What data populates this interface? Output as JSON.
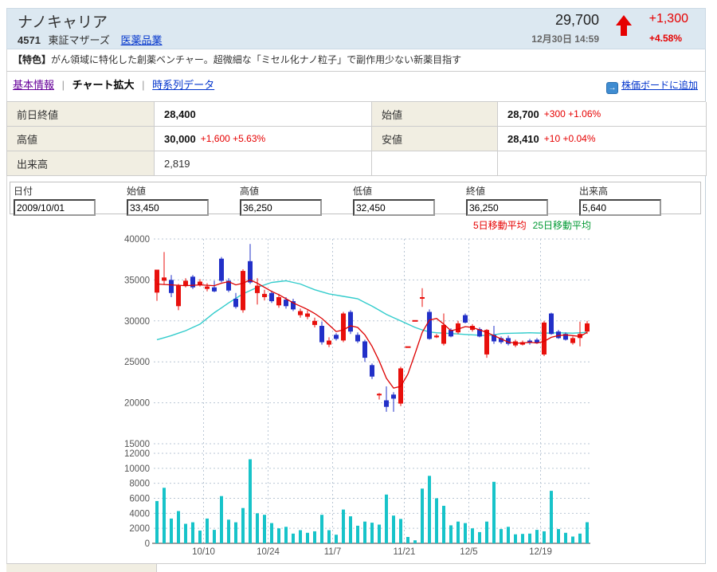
{
  "header": {
    "title": "ナノキャリア",
    "code": "4571",
    "market": "東証マザーズ",
    "industry": "医薬品業",
    "price": "29,700",
    "datetime": "12月30日 14:59",
    "change": "+1,300",
    "change_pct": "+4.58%"
  },
  "feature": {
    "tag": "【特色】",
    "text": "がん領域に特化した創薬ベンチャー。超微細な「ミセル化ナノ粒子」で副作用少ない新薬目指す"
  },
  "tabs": [
    {
      "label": "基本情報",
      "current": false
    },
    {
      "label": "チャート拡大",
      "current": true
    },
    {
      "label": "時系列データ",
      "current": false
    }
  ],
  "addboard_label": "株価ボードに追加",
  "summary": {
    "rows": [
      {
        "label": "前日終値",
        "value": "28,400",
        "extra": "",
        "bold": true
      },
      {
        "label": "始値",
        "value": "28,700",
        "extra": "+300 +1.06%",
        "bold": true
      },
      {
        "label": "高値",
        "value": "30,000",
        "extra": "+1,600 +5.63%",
        "bold": true
      },
      {
        "label": "安値",
        "value": "28,410",
        "extra": "+10 +0.04%",
        "bold": true
      },
      {
        "label": "出来高",
        "value": "2,819",
        "extra": "",
        "bold": false
      },
      null
    ]
  },
  "form": {
    "fields": [
      {
        "label": "日付",
        "value": "2009/10/01"
      },
      {
        "label": "始値",
        "value": "33,450"
      },
      {
        "label": "高値",
        "value": "36,250"
      },
      {
        "label": "低値",
        "value": "32,450"
      },
      {
        "label": "終値",
        "value": "36,250"
      },
      {
        "label": "出来高",
        "value": "5,640"
      }
    ]
  },
  "legend": {
    "ma5": "5日移動平均",
    "ma25": "25日移動平均"
  },
  "chart_data": {
    "type": "candlestick+volume",
    "price_axis": {
      "min": 15000,
      "max": 40000,
      "ticks": [
        40000,
        35000,
        30000,
        25000,
        20000,
        15000
      ]
    },
    "volume_axis": {
      "min": 0,
      "max": 12000,
      "ticks": [
        12000,
        10000,
        8000,
        6000,
        4000,
        2000,
        0
      ]
    },
    "x_tick_labels": [
      "10/10",
      "10/24",
      "11/7",
      "11/21",
      "12/5",
      "12/19"
    ],
    "x_tick_day_boundaries": [
      6.5,
      15.5,
      24.5,
      34.5,
      43.5,
      53.5
    ],
    "day_fields": [
      "date",
      "open",
      "high",
      "low",
      "close",
      "volume"
    ],
    "days": [
      [
        "2009/10/01",
        33450,
        36250,
        32450,
        36250,
        5640
      ],
      [
        "2009/10/02",
        34900,
        38400,
        34500,
        35300,
        7400
      ],
      [
        "2009/10/05",
        35000,
        35600,
        32900,
        33400,
        3300
      ],
      [
        "2009/10/06",
        31800,
        34500,
        31300,
        34300,
        4300
      ],
      [
        "2009/10/07",
        34300,
        35200,
        34100,
        34900,
        2600
      ],
      [
        "2009/10/08",
        35400,
        35600,
        33900,
        34100,
        2800
      ],
      [
        "2009/10/09",
        34400,
        35100,
        34200,
        34800,
        1700
      ],
      [
        "2009/10/13",
        33900,
        34600,
        33600,
        34200,
        3300
      ],
      [
        "2009/10/14",
        34100,
        34900,
        33500,
        33600,
        1800
      ],
      [
        "2009/10/15",
        37600,
        37800,
        34700,
        34900,
        6300
      ],
      [
        "2009/10/16",
        34900,
        35200,
        33500,
        33700,
        3150
      ],
      [
        "2009/10/19",
        32700,
        33400,
        31500,
        31700,
        2800
      ],
      [
        "2009/10/20",
        31300,
        36300,
        31000,
        36100,
        4700
      ],
      [
        "2009/10/21",
        37300,
        39400,
        34500,
        34700,
        11200
      ],
      [
        "2009/10/22",
        33400,
        35200,
        32000,
        34300,
        4000
      ],
      [
        "2009/10/23",
        32900,
        33800,
        32500,
        33300,
        3800
      ],
      [
        "2009/10/26",
        33400,
        33700,
        32200,
        32400,
        2700
      ],
      [
        "2009/10/27",
        31900,
        33300,
        31600,
        32900,
        2000
      ],
      [
        "2009/10/28",
        32600,
        32900,
        31500,
        31800,
        2200
      ],
      [
        "2009/10/29",
        32400,
        32700,
        31200,
        31400,
        1300
      ],
      [
        "2009/10/30",
        30700,
        31500,
        30400,
        31200,
        1750
      ],
      [
        "2009/11/02",
        30500,
        31300,
        30200,
        30900,
        1400
      ],
      [
        "2009/11/04",
        29500,
        30400,
        29200,
        30000,
        1600
      ],
      [
        "2009/11/05",
        29400,
        29900,
        27100,
        27400,
        3800
      ],
      [
        "2009/11/06",
        27100,
        28000,
        26800,
        27600,
        1750
      ],
      [
        "2009/11/09",
        28300,
        28500,
        27600,
        27800,
        1150
      ],
      [
        "2009/11/10",
        27600,
        31100,
        27400,
        30900,
        4500
      ],
      [
        "2009/11/11",
        31100,
        31300,
        28400,
        28700,
        3600
      ],
      [
        "2009/11/12",
        28300,
        28600,
        27300,
        27500,
        2350
      ],
      [
        "2009/11/13",
        27500,
        27700,
        25000,
        25500,
        2900
      ],
      [
        "2009/11/16",
        24600,
        24800,
        22900,
        23200,
        2750
      ],
      [
        "2009/11/17",
        21100,
        21200,
        20400,
        21100,
        2500
      ],
      [
        "2009/11/18",
        20300,
        22000,
        18900,
        19500,
        6500
      ],
      [
        "2009/11/19",
        21000,
        21300,
        18900,
        20500,
        3700
      ],
      [
        "2009/11/20",
        19900,
        24400,
        19600,
        24200,
        3250
      ],
      [
        "2009/11/24",
        26900,
        26900,
        26900,
        26900,
        850
      ],
      [
        "2009/11/25",
        30100,
        30100,
        30100,
        30100,
        400
      ],
      [
        "2009/11/26",
        32900,
        34000,
        31700,
        32900,
        7300
      ],
      [
        "2009/11/27",
        31100,
        31400,
        27700,
        27800,
        9000
      ],
      [
        "2009/11/30",
        28000,
        28400,
        27900,
        28200,
        6000
      ],
      [
        "2009/12/01",
        27200,
        30900,
        27000,
        29500,
        5000
      ],
      [
        "2009/12/02",
        28900,
        29100,
        28000,
        28100,
        2400
      ],
      [
        "2009/12/03",
        28600,
        30000,
        28400,
        29700,
        2900
      ],
      [
        "2009/12/04",
        30700,
        30900,
        29700,
        29800,
        2700
      ],
      [
        "2009/12/07",
        28900,
        29600,
        28700,
        29400,
        2000
      ],
      [
        "2009/12/08",
        29000,
        29200,
        28000,
        28100,
        1500
      ],
      [
        "2009/12/09",
        25900,
        29000,
        25500,
        28900,
        2900
      ],
      [
        "2009/12/10",
        28300,
        29400,
        27200,
        27500,
        8200
      ],
      [
        "2009/12/11",
        27900,
        28100,
        27200,
        27400,
        1900
      ],
      [
        "2009/12/14",
        27900,
        28200,
        27000,
        27200,
        2200
      ],
      [
        "2009/12/15",
        27000,
        27700,
        26800,
        27500,
        1200
      ],
      [
        "2009/12/16",
        27100,
        27600,
        27000,
        27400,
        1250
      ],
      [
        "2009/12/17",
        27600,
        27800,
        27100,
        27300,
        1300
      ],
      [
        "2009/12/18",
        27700,
        27900,
        27200,
        27300,
        1800
      ],
      [
        "2009/12/21",
        25900,
        30000,
        25700,
        29800,
        1600
      ],
      [
        "2009/12/22",
        30900,
        31000,
        28300,
        28400,
        7000
      ],
      [
        "2009/12/24",
        28700,
        28900,
        27800,
        27900,
        1900
      ],
      [
        "2009/12/25",
        28400,
        28600,
        27600,
        27700,
        1400
      ],
      [
        "2009/12/28",
        27300,
        28100,
        27100,
        27900,
        900
      ],
      [
        "2009/12/29",
        27900,
        29900,
        26900,
        28400,
        1300
      ],
      [
        "2009/12/30",
        28700,
        30000,
        28410,
        29700,
        2819
      ]
    ],
    "ma5": [
      34500,
      34450,
      34400,
      34350,
      34300,
      34350,
      34400,
      34350,
      34300,
      34600,
      34800,
      34400,
      34600,
      35000,
      34600,
      34100,
      33600,
      33200,
      32700,
      32200,
      31800,
      31400,
      30900,
      30300,
      29500,
      28700,
      28900,
      29400,
      29200,
      28300,
      26900,
      25100,
      23000,
      21800,
      22000,
      23500,
      26000,
      28600,
      30100,
      30300,
      29600,
      28800,
      29000,
      29300,
      29200,
      28900,
      28600,
      28200,
      27800,
      27400,
      27300,
      27300,
      27400,
      27300,
      27500,
      28000,
      28200,
      28300,
      28200,
      28100,
      28600
    ],
    "ma25": [
      27700,
      27950,
      28200,
      28500,
      28800,
      29200,
      29600,
      30300,
      31000,
      31600,
      32200,
      32750,
      33300,
      33700,
      34100,
      34400,
      34700,
      34800,
      34900,
      34700,
      34500,
      34150,
      33800,
      33550,
      33300,
      33150,
      33000,
      32850,
      32700,
      32250,
      31800,
      31300,
      30800,
      30400,
      30000,
      29600,
      29200,
      28900,
      28650,
      28550,
      28500,
      28450,
      28400,
      28350,
      28300,
      28250,
      28200,
      28300,
      28450,
      28480,
      28500,
      28520,
      28550,
      28520,
      28500,
      28520,
      28550,
      28520,
      28500,
      28550,
      28600
    ],
    "colors": {
      "up": "#e8100c",
      "down": "#2230c8",
      "volume": "#17c3c9",
      "ma5": "#dd0000",
      "ma25": "#33cccc",
      "grid": "#b9c6d4",
      "axis_text": "#555",
      "axis_line": "#666"
    }
  }
}
